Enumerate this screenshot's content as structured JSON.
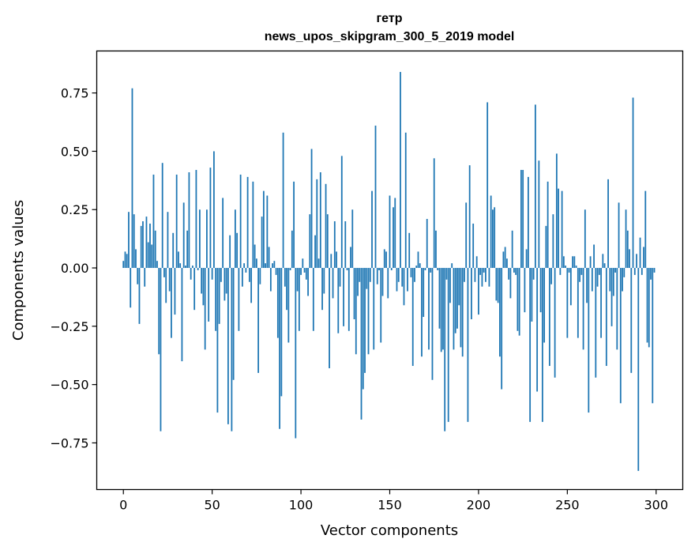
{
  "chart_data": {
    "type": "bar",
    "title_line1": "гетр",
    "title_line2": "news_upos_skipgram_300_5_2019 model",
    "xlabel": "Vector components",
    "ylabel": "Components values",
    "xlim": [
      -15,
      315
    ],
    "ylim": [
      -0.95,
      0.93
    ],
    "xticks": [
      0,
      50,
      100,
      150,
      200,
      250,
      300
    ],
    "xtick_labels": [
      "0",
      "50",
      "100",
      "150",
      "200",
      "250",
      "300"
    ],
    "yticks": [
      0.75,
      0.5,
      0.25,
      0.0,
      -0.25,
      -0.5,
      -0.75
    ],
    "ytick_labels": [
      "0.75",
      "0.50",
      "0.25",
      "0.00",
      "−0.25",
      "−0.50",
      "−0.75"
    ],
    "bar_color": "#1f77b4",
    "values": [
      0.03,
      0.07,
      0.06,
      0.24,
      -0.17,
      0.77,
      0.23,
      0.08,
      -0.07,
      -0.24,
      0.18,
      0.2,
      -0.08,
      0.22,
      0.11,
      0.19,
      0.1,
      0.4,
      0.16,
      0.03,
      -0.37,
      -0.7,
      0.45,
      -0.04,
      -0.15,
      0.24,
      -0.1,
      -0.3,
      0.15,
      -0.2,
      0.4,
      0.07,
      0.02,
      -0.4,
      0.28,
      0.01,
      0.16,
      0.41,
      -0.05,
      0.01,
      -0.18,
      0.42,
      -0.01,
      0.25,
      -0.11,
      -0.16,
      -0.35,
      0.25,
      -0.23,
      0.43,
      -0.05,
      0.5,
      -0.27,
      -0.62,
      -0.24,
      -0.06,
      0.3,
      -0.14,
      -0.11,
      -0.67,
      0.14,
      -0.7,
      -0.48,
      0.25,
      0.15,
      -0.27,
      0.4,
      -0.08,
      0.02,
      -0.02,
      0.39,
      -0.06,
      -0.15,
      0.37,
      0.1,
      0.04,
      -0.45,
      -0.07,
      0.22,
      0.33,
      0.02,
      0.31,
      0.09,
      -0.1,
      0.02,
      0.03,
      -0.03,
      -0.3,
      -0.69,
      -0.55,
      0.58,
      -0.08,
      -0.18,
      -0.32,
      -0.01,
      0.16,
      0.37,
      -0.73,
      -0.1,
      -0.27,
      -0.03,
      0.04,
      -0.02,
      -0.05,
      -0.12,
      0.23,
      0.51,
      -0.27,
      0.14,
      0.38,
      0.04,
      0.41,
      -0.18,
      -0.11,
      0.36,
      0.23,
      -0.43,
      0.06,
      -0.13,
      0.2,
      0.07,
      -0.28,
      -0.08,
      0.48,
      -0.25,
      0.2,
      -0.01,
      -0.27,
      0.09,
      0.25,
      -0.22,
      -0.37,
      -0.12,
      -0.06,
      -0.65,
      -0.52,
      -0.45,
      -0.09,
      -0.37,
      -0.06,
      0.33,
      -0.35,
      0.61,
      -0.07,
      -0.01,
      -0.32,
      -0.12,
      0.08,
      0.07,
      -0.13,
      0.31,
      -0.01,
      0.26,
      0.3,
      -0.1,
      -0.06,
      0.84,
      -0.08,
      -0.16,
      0.58,
      -0.1,
      0.15,
      -0.04,
      -0.42,
      -0.06,
      0.01,
      0.07,
      0.02,
      -0.38,
      -0.21,
      -0.01,
      0.21,
      -0.35,
      -0.02,
      -0.48,
      0.47,
      0.16,
      -0.01,
      -0.26,
      -0.36,
      -0.35,
      -0.7,
      -0.05,
      -0.66,
      -0.15,
      0.02,
      -0.35,
      -0.28,
      -0.26,
      -0.16,
      -0.34,
      -0.38,
      -0.06,
      0.28,
      -0.66,
      0.44,
      -0.22,
      0.19,
      -0.06,
      0.05,
      -0.2,
      -0.03,
      -0.08,
      -0.02,
      -0.06,
      0.71,
      -0.08,
      0.31,
      0.25,
      0.26,
      -0.14,
      -0.15,
      -0.38,
      -0.52,
      0.07,
      0.09,
      0.04,
      -0.05,
      -0.13,
      0.16,
      -0.02,
      -0.03,
      -0.27,
      -0.29,
      0.42,
      0.42,
      -0.19,
      0.08,
      0.39,
      -0.66,
      -0.23,
      -0.05,
      0.7,
      -0.53,
      0.46,
      -0.19,
      -0.66,
      -0.32,
      0.18,
      0.37,
      -0.42,
      -0.07,
      0.23,
      -0.47,
      0.49,
      0.34,
      -0.03,
      0.33,
      0.05,
      0.01,
      -0.3,
      -0.02,
      -0.16,
      0.05,
      0.05,
      0.01,
      -0.3,
      -0.06,
      -0.03,
      -0.35,
      0.25,
      -0.15,
      -0.62,
      0.05,
      -0.1,
      0.1,
      -0.47,
      -0.08,
      -0.03,
      -0.3,
      0.06,
      0.02,
      -0.42,
      0.38,
      -0.1,
      -0.25,
      -0.12,
      -0.02,
      -0.35,
      0.28,
      -0.58,
      -0.1,
      -0.04,
      0.25,
      0.16,
      0.08,
      -0.45,
      0.73,
      -0.03,
      0.06,
      -0.87,
      0.13,
      -0.03,
      0.09,
      0.33,
      -0.32,
      -0.34,
      -0.05,
      -0.58,
      -0.02
    ]
  }
}
